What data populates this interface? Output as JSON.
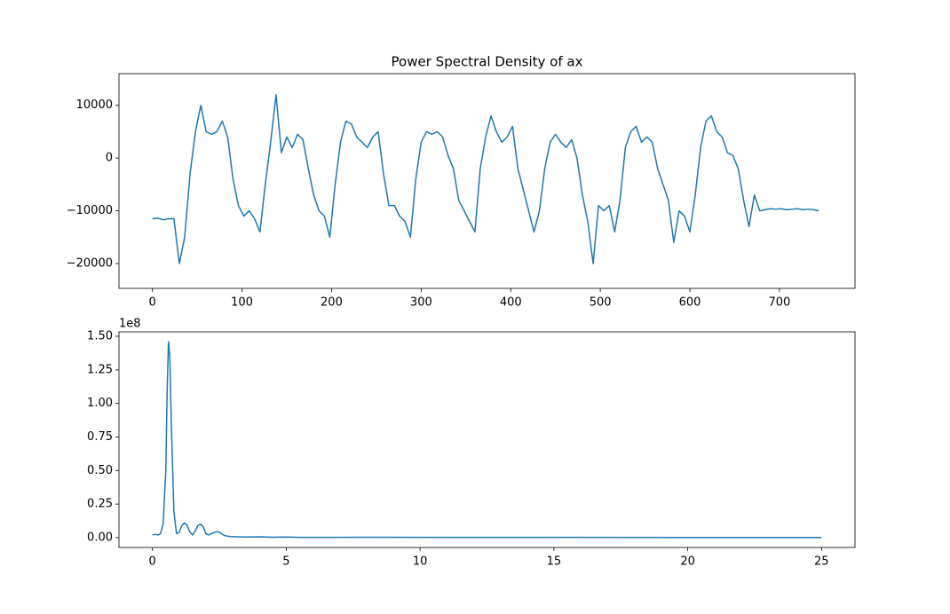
{
  "chart_data": [
    {
      "type": "line",
      "title": "Power Spectral Density of ax",
      "x": [
        0,
        6,
        12,
        18,
        24,
        30,
        36,
        42,
        48,
        54,
        60,
        66,
        72,
        78,
        84,
        90,
        96,
        102,
        108,
        114,
        120,
        126,
        132,
        138,
        144,
        150,
        156,
        162,
        168,
        174,
        180,
        186,
        192,
        198,
        204,
        210,
        216,
        222,
        228,
        234,
        240,
        246,
        252,
        258,
        264,
        270,
        276,
        282,
        288,
        294,
        300,
        306,
        312,
        318,
        324,
        330,
        336,
        342,
        348,
        354,
        360,
        366,
        372,
        378,
        384,
        390,
        396,
        402,
        408,
        414,
        420,
        426,
        432,
        438,
        444,
        450,
        456,
        462,
        468,
        474,
        480,
        486,
        492,
        498,
        504,
        510,
        516,
        522,
        528,
        534,
        540,
        546,
        552,
        558,
        564,
        570,
        576,
        582,
        588,
        594,
        600,
        606,
        612,
        618,
        624,
        630,
        636,
        642,
        648,
        654,
        660,
        666,
        672,
        678,
        684,
        690,
        696,
        702,
        708,
        714,
        720,
        726,
        732,
        738,
        744
      ],
      "series": [
        {
          "color": "#1f77b4",
          "values": [
            -11500,
            -11400,
            -11700,
            -11500,
            -11500,
            -20000,
            -15000,
            -3000,
            5000,
            10000,
            5000,
            4500,
            5000,
            7000,
            4000,
            -4000,
            -9000,
            -11000,
            -10000,
            -11500,
            -14000,
            -5000,
            3000,
            12000,
            1000,
            4000,
            2000,
            4500,
            3500,
            -2000,
            -7000,
            -10000,
            -11000,
            -15000,
            -5000,
            3000,
            7000,
            6500,
            4000,
            3000,
            2000,
            4000,
            5000,
            -3000,
            -9000,
            -9000,
            -11000,
            -12000,
            -15000,
            -4000,
            3000,
            5000,
            4500,
            5000,
            4000,
            500,
            -2000,
            -8000,
            -10000,
            -12000,
            -14000,
            -2000,
            4000,
            8000,
            5000,
            3000,
            4000,
            6000,
            -2000,
            -6000,
            -10000,
            -14000,
            -10000,
            -2000,
            3000,
            4500,
            3000,
            2000,
            3500,
            0,
            -7000,
            -12000,
            -20000,
            -9000,
            -10000,
            -9000,
            -14000,
            -8000,
            2000,
            5000,
            6000,
            3000,
            4000,
            3000,
            -2000,
            -5000,
            -8000,
            -16000,
            -10000,
            -11000,
            -14000,
            -7000,
            2000,
            7000,
            8000,
            5000,
            4000,
            1000,
            500,
            -2000,
            -8000,
            -13000,
            -7000,
            -10000,
            -9800,
            -9600,
            -9700,
            -9600,
            -9800,
            -9700,
            -9600,
            -9800,
            -9700,
            -9800,
            -10000
          ]
        }
      ],
      "xlim": [
        -37.35,
        784.35
      ],
      "xticks": [
        0,
        100,
        200,
        300,
        400,
        500,
        600,
        700
      ],
      "ylim": [
        -24700,
        16000
      ],
      "yticks": [
        {
          "value": -20000,
          "label": "−20000"
        },
        {
          "value": -10000,
          "label": "−10000"
        },
        0,
        10000
      ]
    },
    {
      "type": "line",
      "y_offset_label": "1e8",
      "x": [
        0,
        0.1,
        0.2,
        0.3,
        0.4,
        0.5,
        0.55,
        0.6,
        0.65,
        0.7,
        0.8,
        0.9,
        1.0,
        1.1,
        1.2,
        1.3,
        1.4,
        1.5,
        1.6,
        1.7,
        1.8,
        1.9,
        2.0,
        2.1,
        2.2,
        2.4,
        2.5,
        2.7,
        2.9,
        3.2,
        3.5,
        4,
        4.5,
        5,
        5.5,
        6,
        8,
        10,
        12,
        15,
        20,
        25
      ],
      "series": [
        {
          "color": "#1f77b4",
          "values": [
            0.02,
            0.025,
            0.02,
            0.03,
            0.1,
            0.5,
            1.1,
            1.46,
            1.35,
            0.9,
            0.2,
            0.03,
            0.04,
            0.09,
            0.11,
            0.09,
            0.04,
            0.02,
            0.05,
            0.09,
            0.1,
            0.08,
            0.03,
            0.02,
            0.03,
            0.045,
            0.04,
            0.015,
            0.008,
            0.006,
            0.005,
            0.006,
            0.003,
            0.005,
            0.002,
            0.002,
            0.003,
            0.002,
            0.002,
            0.002,
            0.001,
            0.001
          ]
        }
      ],
      "xlim": [
        -1.25,
        26.25
      ],
      "xticks": [
        0,
        5,
        10,
        15,
        20,
        25
      ],
      "ylim": [
        -0.073,
        1.533
      ],
      "yticks": [
        {
          "value": 0,
          "label": "0.00"
        },
        0.25,
        {
          "value": 0.5,
          "label": "0.50"
        },
        0.75,
        {
          "value": 1,
          "label": "1.00"
        },
        1.25,
        {
          "value": 1.5,
          "label": "1.50"
        }
      ]
    }
  ]
}
